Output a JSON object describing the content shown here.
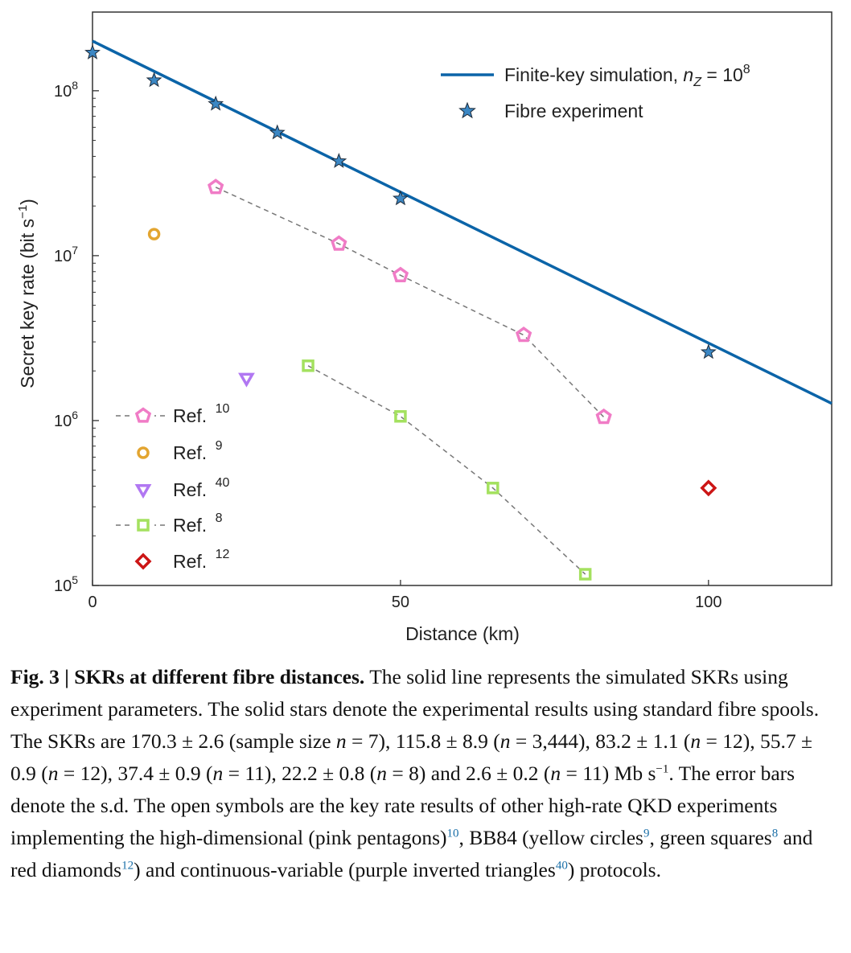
{
  "chart_data": {
    "type": "scatter",
    "xlabel": "Distance (km)",
    "ylabel": "Secret key rate (bit s",
    "ylabel_sup": "−1",
    "ylabel_close": ")",
    "xlim": [
      0,
      120
    ],
    "ylim": [
      100000,
      300000000
    ],
    "yscale": "log",
    "x_ticks": [
      0,
      50,
      100
    ],
    "y_ticks": [
      {
        "value": 100000,
        "base": "10",
        "exp": "5"
      },
      {
        "value": 1000000,
        "base": "10",
        "exp": "6"
      },
      {
        "value": 10000000,
        "base": "10",
        "exp": "7"
      },
      {
        "value": 100000000,
        "base": "10",
        "exp": "8"
      }
    ],
    "simulation": {
      "legend": "Finite-key simulation, ",
      "legend_var": "n",
      "legend_sub": "Z",
      "legend_eq": " = 10",
      "legend_exp": "8",
      "color": "#0b64a8",
      "x": [
        0,
        120
      ],
      "y": [
        200000000,
        1270000
      ]
    },
    "experiment": {
      "legend": "Fibre experiment",
      "color": "#3b87c4",
      "x": [
        0,
        10,
        20,
        30,
        40,
        50,
        100
      ],
      "y": [
        170300000,
        115800000,
        83200000,
        55700000,
        37400000,
        22200000,
        2600000
      ]
    },
    "refs": [
      {
        "legend": "Ref. ",
        "sup": "10",
        "marker": "pentagon",
        "color": "#f07cc6",
        "dashed": true,
        "x": [
          20,
          40,
          50,
          70,
          83
        ],
        "y": [
          26000000,
          11800000,
          7600000,
          3300000,
          1050000
        ]
      },
      {
        "legend": "Ref. ",
        "sup": "9",
        "marker": "circle",
        "color": "#e3a530",
        "dashed": false,
        "x": [
          10
        ],
        "y": [
          13500000
        ]
      },
      {
        "legend": "Ref. ",
        "sup": "40",
        "marker": "triangle-down",
        "color": "#b177f2",
        "dashed": false,
        "x": [
          25
        ],
        "y": [
          1800000
        ]
      },
      {
        "legend": "Ref. ",
        "sup": "8",
        "marker": "square",
        "color": "#a4e15f",
        "dashed": true,
        "x": [
          35,
          50,
          65,
          80
        ],
        "y": [
          2150000,
          1060000,
          390000,
          117000
        ]
      },
      {
        "legend": "Ref. ",
        "sup": "12",
        "marker": "diamond",
        "color": "#cc1515",
        "dashed": false,
        "x": [
          100
        ],
        "y": [
          390000
        ]
      }
    ]
  },
  "caption": {
    "lead": "Fig. 3 | SKRs at different fibre distances.",
    "t1": " The solid line represents the simulated SKRs using experiment parameters. The solid stars denote the experimental results using standard fibre spools. The SKRs are 170.3 ± 2.6 (sample size ",
    "n1": "n",
    "t2": " = 7), 115.8 ± 8.9 (",
    "n2": "n",
    "t3": " = 3,444), 83.2 ± 1.1 (",
    "n3": "n",
    "t4": " = 12), 55.7 ± 0.9 (",
    "n4": "n",
    "t5": " = 12), 37.4 ± 0.9 (",
    "n5": "n",
    "t6": " = 11), 22.2 ± 0.8 (",
    "n6": "n",
    "t7": " = 8) and 2.6 ± 0.2 (",
    "n7": "n",
    "t8": " = 11) Mb s",
    "sup_unit": "−1",
    "t9": ". The error bars denote the s.d. The open symbols are the key rate results of other high-rate QKD experiments implementing the high-dimensional (pink pentagons)",
    "r10": "10",
    "t10": ", BB84 (yellow circles",
    "r9": "9",
    "t11": ", green squares",
    "r8": "8",
    "t12": " and red diamonds",
    "r12": "12",
    "t13": ") and continuous-variable (purple inverted triangles",
    "r40": "40",
    "t14": ") protocols."
  }
}
